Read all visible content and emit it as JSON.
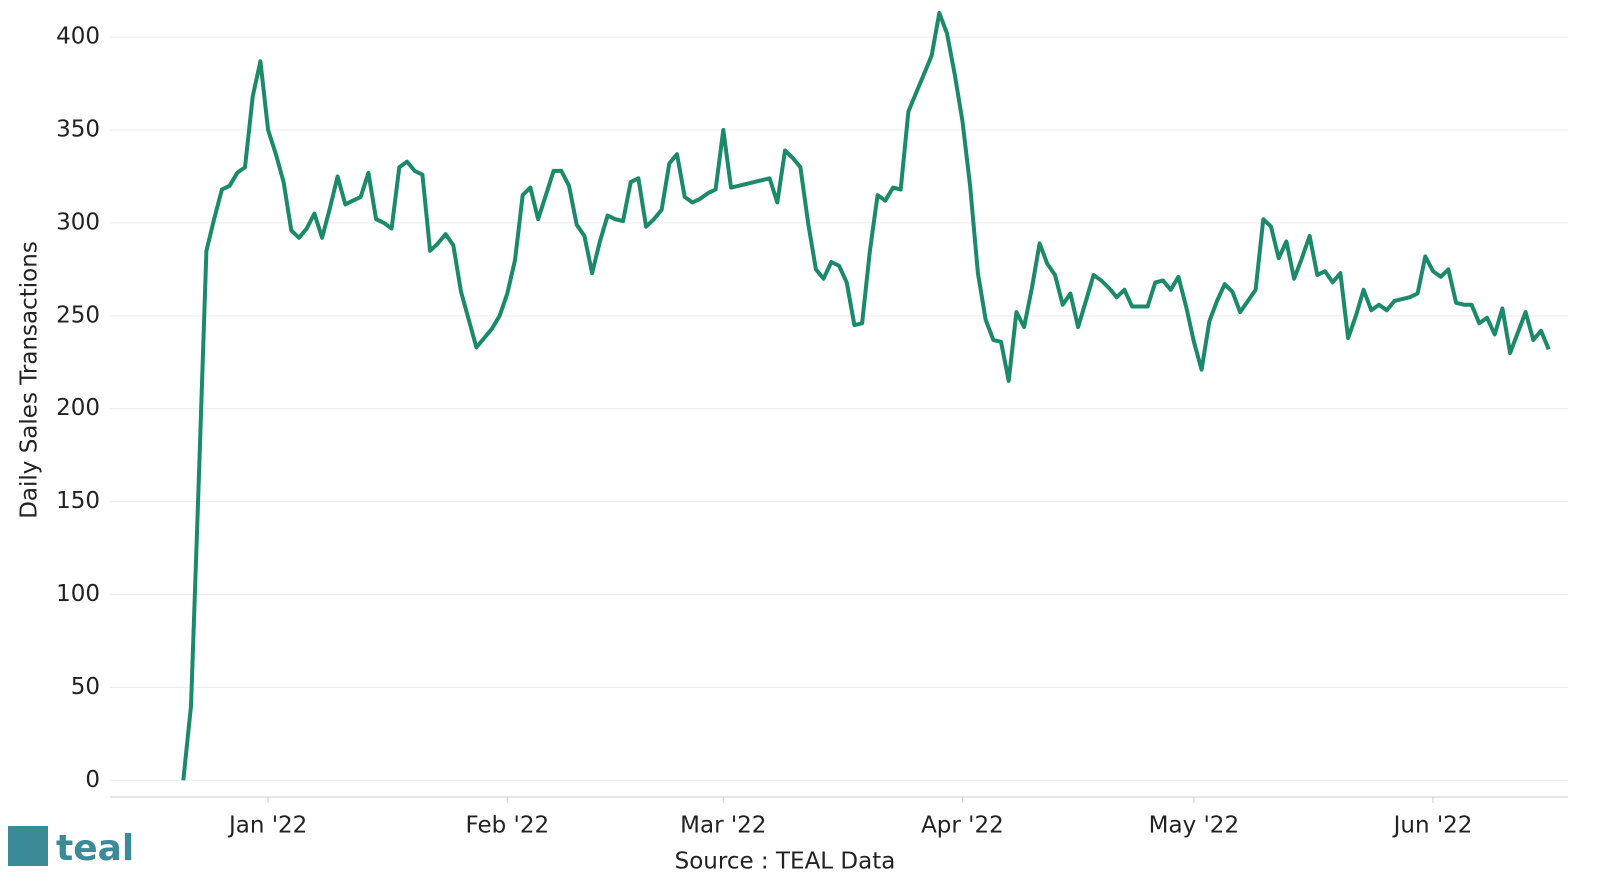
{
  "chart_data": {
    "type": "line",
    "y_label": "Daily Sales Transactions",
    "source": "Source : TEAL Data",
    "logo_text": "teal",
    "color": "#1b8a6b",
    "grid": true,
    "values": [
      0,
      40,
      160,
      285,
      302,
      318,
      320,
      327,
      330,
      368,
      387,
      350,
      337,
      322,
      296,
      292,
      297,
      305,
      292,
      308,
      325,
      310,
      312,
      314,
      327,
      302,
      300,
      297,
      330,
      333,
      328,
      326,
      285,
      289,
      294,
      288,
      263,
      248,
      233,
      238,
      243,
      250,
      262,
      280,
      315,
      319,
      302,
      315,
      328,
      328,
      320,
      299,
      293,
      273,
      290,
      304,
      302,
      301,
      322,
      324,
      298,
      302,
      307,
      332,
      337,
      314,
      311,
      313,
      316,
      318,
      350,
      319,
      320,
      321,
      322,
      323,
      324,
      311,
      339,
      335,
      330,
      300,
      275,
      270,
      279,
      277,
      268,
      245,
      246,
      285,
      315,
      312,
      319,
      318,
      360,
      370,
      380,
      390,
      413,
      402,
      380,
      355,
      320,
      273,
      248,
      237,
      236,
      215,
      252,
      244,
      265,
      289,
      278,
      272,
      256,
      262,
      244,
      258,
      272,
      269,
      265,
      260,
      264,
      255,
      255,
      255,
      268,
      269,
      264,
      271,
      255,
      236,
      221,
      247,
      258,
      267,
      263,
      252,
      258,
      264,
      302,
      298,
      281,
      290,
      270,
      281,
      293,
      272,
      274,
      268,
      273,
      238,
      250,
      264,
      253,
      256,
      253,
      258,
      259,
      260,
      262,
      282,
      274,
      271,
      275,
      257,
      256,
      256,
      246,
      249,
      240,
      254,
      230,
      241,
      252,
      237,
      242,
      232
    ],
    "xlim": [
      -9.5,
      179.5
    ],
    "xticks": [
      {
        "value": 11,
        "label": "Jan '22"
      },
      {
        "value": 42,
        "label": "Feb '22"
      },
      {
        "value": 70,
        "label": "Mar '22"
      },
      {
        "value": 101,
        "label": "Apr '22"
      },
      {
        "value": 131,
        "label": "May '22"
      },
      {
        "value": 162,
        "label": "Jun '22"
      }
    ],
    "ylim": [
      -9,
      420
    ],
    "yticks": [
      0,
      50,
      100,
      150,
      200,
      250,
      300,
      350,
      400
    ]
  }
}
